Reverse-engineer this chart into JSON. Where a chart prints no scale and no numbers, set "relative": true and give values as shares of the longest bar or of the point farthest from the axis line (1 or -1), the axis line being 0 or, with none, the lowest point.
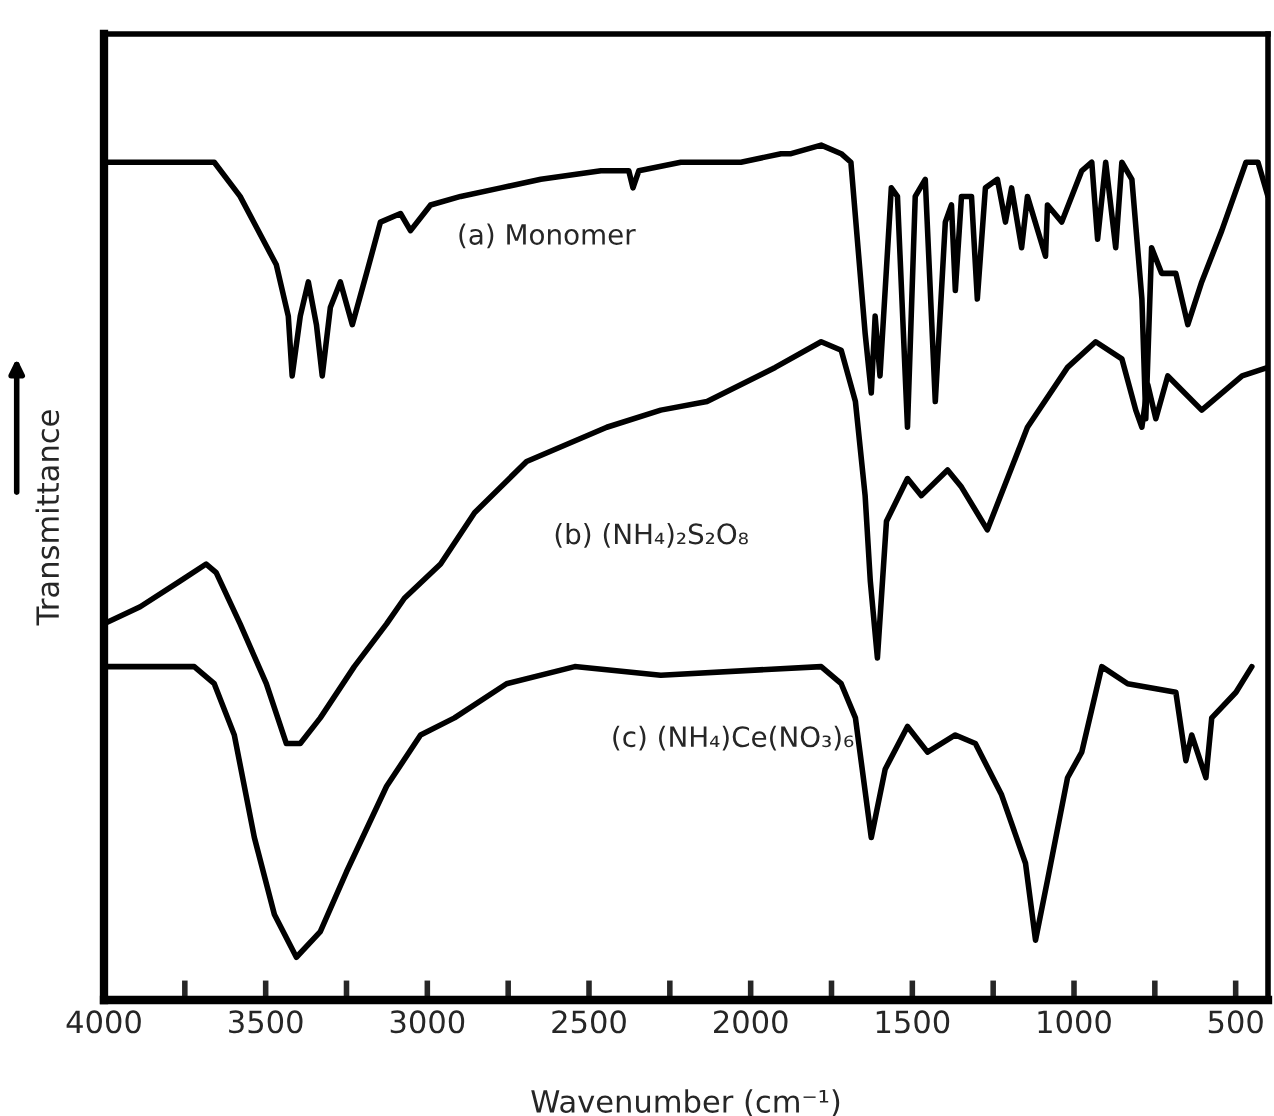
{
  "chart_data": {
    "type": "line",
    "relative": true,
    "xlabel": "Wavenumber (cm⁻¹)",
    "ylabel": "Transmittance",
    "xlim": [
      4000,
      400
    ],
    "xticks": [
      4000,
      {
        "value": 3750,
        "label": null
      },
      3500,
      {
        "value": 3250,
        "label": null
      },
      3000,
      {
        "value": 2750,
        "label": null
      },
      2500,
      {
        "value": 2250,
        "label": null
      },
      2000,
      {
        "value": 1750,
        "label": null
      },
      1500,
      {
        "value": 1250,
        "label": null
      },
      1000,
      {
        "value": 750,
        "label": null
      },
      500
    ],
    "tick_labels": "x",
    "grid": false,
    "legend": false,
    "marker": "none",
    "line_style": "solid",
    "series": [
      {
        "name": "(a) Monomer",
        "color": "#000000",
        "x": [
          4000,
          3888,
          3765,
          3659,
          3579,
          3467,
          3430,
          3418,
          3393,
          3368,
          3343,
          3325,
          3300,
          3269,
          3232,
          3188,
          3145,
          3083,
          3052,
          2990,
          2897,
          2773,
          2649,
          2463,
          2377,
          2364,
          2346,
          2216,
          2030,
          1906,
          1875,
          1782,
          1720,
          1690,
          1646,
          1627,
          1615,
          1600,
          1565,
          1546,
          1515,
          1491,
          1460,
          1429,
          1398,
          1379,
          1367,
          1348,
          1317,
          1299,
          1274,
          1237,
          1212,
          1193,
          1162,
          1144,
          1088,
          1082,
          1038,
          976,
          945,
          927,
          902,
          871,
          852,
          821,
          790,
          778,
          760,
          729,
          685,
          648,
          605,
          543,
          468,
          431,
          400
        ],
        "values": [
          0.98,
          0.98,
          0.98,
          0.98,
          0.94,
          0.86,
          0.8,
          0.73,
          0.8,
          0.84,
          0.79,
          0.73,
          0.81,
          0.84,
          0.79,
          0.85,
          0.91,
          0.92,
          0.9,
          0.93,
          0.94,
          0.95,
          0.96,
          0.97,
          0.97,
          0.95,
          0.97,
          0.98,
          0.98,
          0.99,
          0.99,
          1.0,
          0.99,
          0.98,
          0.78,
          0.71,
          0.8,
          0.73,
          0.95,
          0.94,
          0.67,
          0.94,
          0.96,
          0.7,
          0.91,
          0.93,
          0.83,
          0.94,
          0.94,
          0.82,
          0.95,
          0.96,
          0.91,
          0.95,
          0.88,
          0.94,
          0.87,
          0.93,
          0.91,
          0.97,
          0.98,
          0.89,
          0.98,
          0.88,
          0.98,
          0.96,
          0.82,
          0.68,
          0.88,
          0.85,
          0.85,
          0.79,
          0.84,
          0.9,
          0.98,
          0.98,
          0.94
        ]
      },
      {
        "name": "(b) (NH₄)₂S₂O₈",
        "color": "#000000",
        "x": [
          4000,
          3888,
          3765,
          3684,
          3653,
          3579,
          3498,
          3436,
          3393,
          3331,
          3226,
          3126,
          3071,
          2959,
          2854,
          2693,
          2445,
          2278,
          2135,
          1924,
          1782,
          1720,
          1676,
          1646,
          1630,
          1608,
          1580,
          1515,
          1472,
          1391,
          1348,
          1268,
          1144,
          1020,
          933,
          852,
          809,
          790,
          772,
          747,
          710,
          605,
          480,
          400
        ],
        "values": [
          0.44,
          0.46,
          0.49,
          0.51,
          0.5,
          0.44,
          0.37,
          0.3,
          0.3,
          0.33,
          0.39,
          0.44,
          0.47,
          0.51,
          0.57,
          0.63,
          0.67,
          0.69,
          0.7,
          0.74,
          0.77,
          0.76,
          0.7,
          0.59,
          0.49,
          0.4,
          0.56,
          0.61,
          0.59,
          0.62,
          0.6,
          0.55,
          0.67,
          0.74,
          0.77,
          0.75,
          0.69,
          0.67,
          0.72,
          0.68,
          0.73,
          0.69,
          0.73,
          0.74
        ]
      },
      {
        "name": "(c) (NH₄)Ce(NO₃)₆",
        "color": "#000000",
        "x": [
          4000,
          3721,
          3659,
          3597,
          3535,
          3473,
          3405,
          3331,
          3250,
          3126,
          3021,
          2916,
          2755,
          2544,
          2278,
          1782,
          1720,
          1676,
          1627,
          1584,
          1515,
          1453,
          1367,
          1305,
          1224,
          1150,
          1119,
          1082,
          1020,
          976,
          914,
          834,
          685,
          654,
          636,
          592,
          574,
          499,
          450
        ],
        "values": [
          0.39,
          0.39,
          0.37,
          0.31,
          0.19,
          0.1,
          0.05,
          0.08,
          0.15,
          0.25,
          0.31,
          0.33,
          0.37,
          0.39,
          0.38,
          0.39,
          0.37,
          0.33,
          0.19,
          0.27,
          0.32,
          0.29,
          0.31,
          0.3,
          0.24,
          0.16,
          0.07,
          0.14,
          0.26,
          0.29,
          0.39,
          0.37,
          0.36,
          0.28,
          0.31,
          0.26,
          0.33,
          0.36,
          0.39
        ]
      }
    ]
  }
}
